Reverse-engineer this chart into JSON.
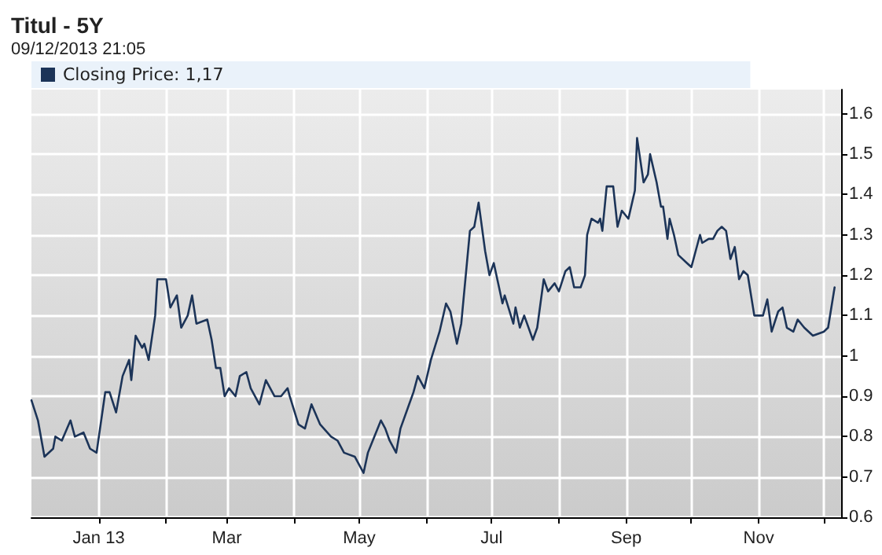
{
  "chart_data": {
    "type": "line",
    "title": "Titul - 5Y",
    "subtitle": "09/12/2013 21:05",
    "x": [
      "2012-12-01",
      "2012-12-04",
      "2012-12-07",
      "2012-12-11",
      "2012-12-12",
      "2012-12-15",
      "2012-12-19",
      "2012-12-21",
      "2012-12-25",
      "2012-12-28",
      "2012-12-31",
      "2013-01-04",
      "2013-01-06",
      "2013-01-09",
      "2013-01-12",
      "2013-01-15",
      "2013-01-16",
      "2013-01-18",
      "2013-01-21",
      "2013-01-22",
      "2013-01-24",
      "2013-01-27",
      "2013-01-28",
      "2013-02-01",
      "2013-02-03",
      "2013-02-06",
      "2013-02-08",
      "2013-02-11",
      "2013-02-13",
      "2013-02-15",
      "2013-02-20",
      "2013-02-22",
      "2013-02-24",
      "2013-02-26",
      "2013-02-28",
      "2013-03-02",
      "2013-03-05",
      "2013-03-07",
      "2013-03-10",
      "2013-03-12",
      "2013-03-16",
      "2013-03-19",
      "2013-03-23",
      "2013-03-26",
      "2013-03-29",
      "2013-03-30",
      "2013-04-03",
      "2013-04-06",
      "2013-04-09",
      "2013-04-13",
      "2013-04-18",
      "2013-04-21",
      "2013-04-24",
      "2013-04-29",
      "2013-05-03",
      "2013-05-05",
      "2013-05-08",
      "2013-05-11",
      "2013-05-13",
      "2013-05-15",
      "2013-05-18",
      "2013-05-20",
      "2013-05-24",
      "2013-05-26",
      "2013-05-28",
      "2013-05-31",
      "2013-06-03",
      "2013-06-07",
      "2013-06-10",
      "2013-06-12",
      "2013-06-15",
      "2013-06-17",
      "2013-06-21",
      "2013-06-23",
      "2013-06-25",
      "2013-06-28",
      "2013-06-30",
      "2013-07-02",
      "2013-07-04",
      "2013-07-06",
      "2013-07-07",
      "2013-07-11",
      "2013-07-12",
      "2013-07-14",
      "2013-07-16",
      "2013-07-20",
      "2013-07-22",
      "2013-07-25",
      "2013-07-27",
      "2013-07-30",
      "2013-08-01",
      "2013-08-04",
      "2013-08-06",
      "2013-08-08",
      "2013-08-11",
      "2013-08-13",
      "2013-08-14",
      "2013-08-16",
      "2013-08-19",
      "2013-08-20",
      "2013-08-21",
      "2013-08-23",
      "2013-08-26",
      "2013-08-28",
      "2013-08-30",
      "2013-09-02",
      "2013-09-05",
      "2013-09-06",
      "2013-09-09",
      "2013-09-11",
      "2013-09-12",
      "2013-09-15",
      "2013-09-17",
      "2013-09-18",
      "2013-09-20",
      "2013-09-21",
      "2013-09-23",
      "2013-09-25",
      "2013-09-29",
      "2013-10-01",
      "2013-10-03",
      "2013-10-05",
      "2013-10-06",
      "2013-10-09",
      "2013-10-11",
      "2013-10-13",
      "2013-10-15",
      "2013-10-17",
      "2013-10-19",
      "2013-10-21",
      "2013-10-23",
      "2013-10-25",
      "2013-10-27",
      "2013-10-30",
      "2013-11-03",
      "2013-11-05",
      "2013-11-07",
      "2013-11-10",
      "2013-11-12",
      "2013-11-14",
      "2013-11-17",
      "2013-11-19",
      "2013-11-22",
      "2013-11-26",
      "2013-12-01",
      "2013-12-03",
      "2013-12-06"
    ],
    "series": [
      {
        "name": "Closing Price: 1,17",
        "color": "#1c3458",
        "values": [
          0.89,
          0.84,
          0.75,
          0.77,
          0.8,
          0.79,
          0.84,
          0.8,
          0.81,
          0.77,
          0.76,
          0.91,
          0.91,
          0.86,
          0.95,
          0.99,
          0.94,
          1.05,
          1.02,
          1.03,
          0.99,
          1.1,
          1.19,
          1.19,
          1.12,
          1.15,
          1.07,
          1.1,
          1.15,
          1.08,
          1.09,
          1.04,
          0.97,
          0.97,
          0.9,
          0.92,
          0.9,
          0.95,
          0.96,
          0.92,
          0.88,
          0.94,
          0.9,
          0.9,
          0.92,
          0.9,
          0.83,
          0.82,
          0.88,
          0.83,
          0.8,
          0.79,
          0.76,
          0.75,
          0.71,
          0.76,
          0.8,
          0.84,
          0.82,
          0.79,
          0.76,
          0.82,
          0.88,
          0.91,
          0.95,
          0.92,
          0.99,
          1.06,
          1.13,
          1.11,
          1.03,
          1.08,
          1.31,
          1.32,
          1.38,
          1.26,
          1.2,
          1.23,
          1.18,
          1.13,
          1.15,
          1.08,
          1.12,
          1.07,
          1.1,
          1.04,
          1.07,
          1.19,
          1.16,
          1.18,
          1.16,
          1.21,
          1.22,
          1.17,
          1.17,
          1.2,
          1.3,
          1.34,
          1.33,
          1.34,
          1.31,
          1.42,
          1.42,
          1.32,
          1.36,
          1.34,
          1.41,
          1.54,
          1.43,
          1.45,
          1.5,
          1.43,
          1.37,
          1.37,
          1.29,
          1.34,
          1.3,
          1.25,
          1.23,
          1.22,
          1.26,
          1.3,
          1.28,
          1.29,
          1.29,
          1.31,
          1.32,
          1.31,
          1.24,
          1.27,
          1.19,
          1.21,
          1.2,
          1.1,
          1.1,
          1.14,
          1.06,
          1.11,
          1.12,
          1.07,
          1.06,
          1.09,
          1.07,
          1.05,
          1.06,
          1.07,
          1.17
        ]
      }
    ],
    "xlim": [
      "2012-12-01",
      "2013-12-09"
    ],
    "xticks": [
      {
        "value": "2013-01-01",
        "label": "Jan 13"
      },
      {
        "value": "2013-02-01",
        "label": null
      },
      {
        "value": "2013-03-01",
        "label": "Mar"
      },
      {
        "value": "2013-04-01",
        "label": null
      },
      {
        "value": "2013-05-01",
        "label": "May"
      },
      {
        "value": "2013-06-01",
        "label": null
      },
      {
        "value": "2013-07-01",
        "label": "Jul"
      },
      {
        "value": "2013-08-01",
        "label": null
      },
      {
        "value": "2013-09-01",
        "label": "Sep"
      },
      {
        "value": "2013-10-01",
        "label": null
      },
      {
        "value": "2013-11-01",
        "label": "Nov"
      },
      {
        "value": "2013-12-01",
        "label": null
      }
    ],
    "ylim": [
      0.6,
      1.66
    ],
    "yticks": [
      0.6,
      0.7,
      0.8,
      0.9,
      {
        "value": 1,
        "label": "1"
      },
      1.1,
      1.2,
      1.3,
      1.4,
      1.5,
      1.6
    ],
    "grid": true,
    "legend": "top left",
    "marker": "none",
    "line_style": "solid"
  }
}
